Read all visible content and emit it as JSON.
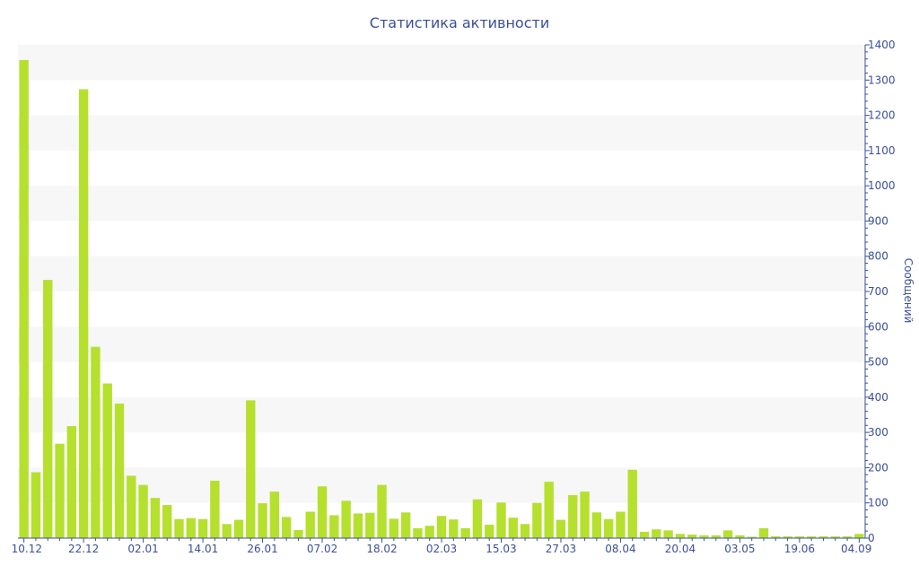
{
  "chart_data": {
    "type": "bar",
    "title": "Статистика активности",
    "xlabel": "",
    "ylabel": "Сообщений",
    "ylim": [
      0,
      1400
    ],
    "y_ticks": [
      0,
      100,
      200,
      300,
      400,
      500,
      600,
      700,
      800,
      900,
      1000,
      1100,
      1200,
      1300,
      1400
    ],
    "y_axis_side": "right",
    "grid": "alternating horizontal bands",
    "legend": "none",
    "bar_color": "#b5e02e",
    "band_color": "#f7f7f7",
    "axis_color": "#3a4f9a",
    "x_tick_labels": [
      "10.12",
      "22.12",
      "02.01",
      "14.01",
      "26.01",
      "07.02",
      "18.02",
      "02.03",
      "15.03",
      "27.03",
      "08.04",
      "20.04",
      "03.05",
      "19.06",
      "04.09"
    ],
    "x_tick_indices": [
      0,
      5,
      10,
      15,
      20,
      25,
      30,
      35,
      40,
      45,
      50,
      55,
      60,
      65,
      70
    ],
    "values": [
      1357,
      187,
      733,
      268,
      318,
      1274,
      543,
      439,
      382,
      177,
      151,
      114,
      94,
      54,
      57,
      54,
      163,
      40,
      52,
      391,
      99,
      132,
      60,
      23,
      75,
      147,
      65,
      106,
      70,
      72,
      151,
      55,
      73,
      28,
      35,
      63,
      53,
      28,
      110,
      38,
      101,
      58,
      40,
      100,
      160,
      52,
      122,
      132,
      73,
      54,
      75,
      194,
      18,
      25,
      22,
      12,
      10,
      8,
      8,
      22,
      8,
      4,
      28,
      5,
      5,
      5,
      5,
      5,
      5,
      5,
      12
    ]
  }
}
